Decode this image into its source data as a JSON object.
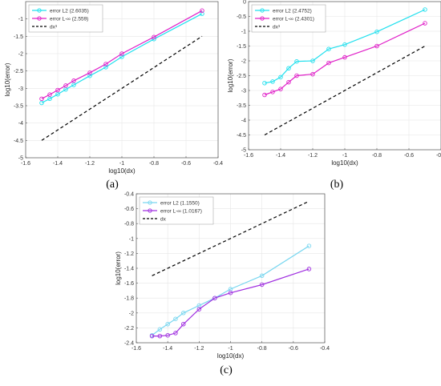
{
  "chart_data": [
    {
      "type": "line",
      "caption": "(a)",
      "xlabel": "log10(dx)",
      "ylabel": "log10(error)",
      "xlim": [
        -1.6,
        -0.4
      ],
      "ylim": [
        -5,
        -0.5
      ],
      "xticks": [
        -1.6,
        -1.4,
        -1.2,
        -1,
        -0.8,
        -0.6,
        -0.4
      ],
      "yticks": [
        -5,
        -4.5,
        -4,
        -3.5,
        -3,
        -2.5,
        -2,
        -1.5,
        -1
      ],
      "grid": true,
      "legend_position": "top-left",
      "series": [
        {
          "name": "error L2 (2.6035)",
          "color": "#22e0ee",
          "marker": "circle",
          "dash": "solid",
          "x": [
            -1.5,
            -1.45,
            -1.4,
            -1.35,
            -1.3,
            -1.2,
            -1.1,
            -1.0,
            -0.8,
            -0.5
          ],
          "y": [
            -3.42,
            -3.3,
            -3.17,
            -3.03,
            -2.9,
            -2.64,
            -2.39,
            -2.09,
            -1.58,
            -0.85
          ]
        },
        {
          "name": "error L-∞ (2.559)",
          "color": "#e020c8",
          "marker": "circle",
          "dash": "solid",
          "x": [
            -1.5,
            -1.45,
            -1.4,
            -1.35,
            -1.3,
            -1.2,
            -1.1,
            -1.0,
            -0.8,
            -0.5
          ],
          "y": [
            -3.3,
            -3.18,
            -3.05,
            -2.92,
            -2.78,
            -2.55,
            -2.3,
            -2.0,
            -1.52,
            -0.76
          ]
        },
        {
          "name": "dx³",
          "color": "#000000",
          "marker": "none",
          "dash": "dashed",
          "x": [
            -1.5,
            -0.5
          ],
          "y": [
            -4.5,
            -1.5
          ]
        }
      ]
    },
    {
      "type": "line",
      "caption": "(b)",
      "xlabel": "log10(dx)",
      "ylabel": "log10(error)",
      "xlim": [
        -1.6,
        -0.4
      ],
      "ylim": [
        -5,
        0
      ],
      "xticks": [
        -1.6,
        -1.4,
        -1.2,
        -1,
        -0.8,
        -0.6,
        -0.4
      ],
      "yticks": [
        -5,
        -4.5,
        -4,
        -3.5,
        -3,
        -2.5,
        -2,
        -1.5,
        -1,
        -0.5,
        0
      ],
      "grid": true,
      "legend_position": "top-left",
      "series": [
        {
          "name": "error L2 (2.4752)",
          "color": "#22e0ee",
          "marker": "circle",
          "dash": "solid",
          "x": [
            -1.5,
            -1.45,
            -1.4,
            -1.35,
            -1.3,
            -1.2,
            -1.1,
            -1.0,
            -0.8,
            -0.5
          ],
          "y": [
            -2.75,
            -2.7,
            -2.55,
            -2.25,
            -2.02,
            -2.0,
            -1.6,
            -1.45,
            -1.02,
            -0.27
          ]
        },
        {
          "name": "error L-∞ (2.4301)",
          "color": "#e020c8",
          "marker": "circle",
          "dash": "solid",
          "x": [
            -1.5,
            -1.45,
            -1.4,
            -1.35,
            -1.3,
            -1.2,
            -1.1,
            -1.0,
            -0.8,
            -0.5
          ],
          "y": [
            -3.15,
            -3.05,
            -2.95,
            -2.72,
            -2.5,
            -2.45,
            -2.07,
            -1.88,
            -1.5,
            -0.73
          ]
        },
        {
          "name": "dx³",
          "color": "#000000",
          "marker": "none",
          "dash": "dashed",
          "x": [
            -1.5,
            -0.5
          ],
          "y": [
            -4.5,
            -1.5
          ]
        }
      ]
    },
    {
      "type": "line",
      "caption": "(c)",
      "xlabel": "log10(dx)",
      "ylabel": "log10(error)",
      "xlim": [
        -1.6,
        -0.4
      ],
      "ylim": [
        -2.4,
        -0.4
      ],
      "xticks": [
        -1.6,
        -1.4,
        -1.2,
        -1,
        -0.8,
        -0.6,
        -0.4
      ],
      "yticks": [
        -2.4,
        -2.2,
        -2,
        -1.8,
        -1.6,
        -1.4,
        -1.2,
        -1,
        -0.8,
        -0.6,
        -0.4
      ],
      "grid": true,
      "legend_position": "top-left",
      "series": [
        {
          "name": "error L2 (1.1550)",
          "color": "#7ad7f0",
          "marker": "circle",
          "dash": "solid",
          "x": [
            -1.5,
            -1.45,
            -1.4,
            -1.35,
            -1.3,
            -1.2,
            -1.1,
            -1.0,
            -0.8,
            -0.5
          ],
          "y": [
            -2.3,
            -2.22,
            -2.15,
            -2.08,
            -2.0,
            -1.9,
            -1.8,
            -1.68,
            -1.5,
            -1.1
          ]
        },
        {
          "name": "error L-∞ (1.0167)",
          "color": "#a030e0",
          "marker": "circle",
          "dash": "solid",
          "x": [
            -1.5,
            -1.45,
            -1.4,
            -1.35,
            -1.3,
            -1.2,
            -1.1,
            -1.0,
            -0.8,
            -0.5
          ],
          "y": [
            -2.31,
            -2.31,
            -2.3,
            -2.27,
            -2.15,
            -1.95,
            -1.8,
            -1.73,
            -1.62,
            -1.41
          ]
        },
        {
          "name": "dx",
          "color": "#000000",
          "marker": "none",
          "dash": "dashed",
          "x": [
            -1.5,
            -0.5
          ],
          "y": [
            -1.5,
            -0.5
          ]
        }
      ]
    }
  ]
}
